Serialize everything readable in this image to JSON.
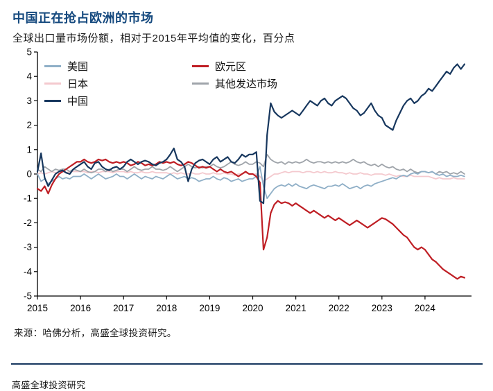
{
  "header": {
    "title": "中国正在抢占欧洲的市场",
    "subtitle": "全球出口量市场份额，相对于2015年平均值的变化，百分点"
  },
  "source": "来源：哈佛分析，高盛全球投资研究。",
  "footer": "高盛全球投资研究",
  "colors": {
    "title_blue": "#164a7f",
    "divider_navy": "#17375e"
  },
  "chart_data": {
    "type": "line",
    "title": "中国正在抢占欧洲的市场",
    "subtitle": "全球出口量市场份额，相对于2015年平均值的变化，百分点",
    "xlabel": "",
    "ylabel": "",
    "grid": false,
    "legend_position": "top-left-inside",
    "xlim": [
      2015,
      2025.08
    ],
    "ylim": [
      -5,
      5
    ],
    "x_ticks": [
      2015,
      2016,
      2017,
      2018,
      2019,
      2020,
      2021,
      2022,
      2023,
      2024
    ],
    "y_ticks": [
      -5,
      -4,
      -3,
      -2,
      -1,
      0,
      1,
      2,
      3,
      4,
      5
    ],
    "x_start": 2015,
    "x_step": 0.0833333,
    "draw_order": [
      "日本",
      "其他发达市场",
      "美国",
      "欧元区",
      "中国"
    ],
    "legend_columns": [
      [
        "美国",
        "日本",
        "中国"
      ],
      [
        "欧元区",
        "其他发达市场"
      ]
    ],
    "series": [
      {
        "name": "美国",
        "color": "#8fafc7",
        "width": 1.8,
        "values": [
          0.0,
          -0.3,
          -0.2,
          -0.4,
          -0.3,
          -0.2,
          -0.1,
          -0.2,
          -0.15,
          -0.2,
          -0.1,
          -0.1,
          -0.1,
          0.0,
          -0.1,
          -0.2,
          -0.1,
          0.0,
          -0.1,
          -0.2,
          -0.15,
          -0.1,
          0.0,
          -0.1,
          -0.1,
          -0.2,
          -0.1,
          0.0,
          -0.1,
          -0.2,
          -0.1,
          -0.15,
          -0.2,
          -0.1,
          -0.15,
          -0.2,
          -0.1,
          0.0,
          -0.1,
          -0.2,
          -0.15,
          -0.1,
          -0.2,
          -0.15,
          -0.2,
          -0.3,
          -0.25,
          -0.2,
          -0.2,
          -0.1,
          -0.2,
          -0.25,
          -0.15,
          -0.2,
          -0.3,
          -0.25,
          -0.2,
          -0.3,
          -0.25,
          -0.2,
          -0.2,
          -0.1,
          0.3,
          -0.5,
          -1.0,
          -0.8,
          -0.6,
          -0.5,
          -0.45,
          -0.5,
          -0.4,
          -0.5,
          -0.4,
          -0.5,
          -0.55,
          -0.6,
          -0.5,
          -0.45,
          -0.5,
          -0.55,
          -0.6,
          -0.5,
          -0.5,
          -0.45,
          -0.5,
          -0.4,
          -0.5,
          -0.6,
          -0.55,
          -0.5,
          -0.6,
          -0.5,
          -0.45,
          -0.5,
          -0.4,
          -0.35,
          -0.3,
          -0.25,
          -0.2,
          -0.15,
          -0.2,
          -0.1,
          -0.05,
          -0.1,
          0.0,
          0.05,
          0.0,
          0.1,
          0.1,
          0.05,
          0.1,
          0.0,
          -0.05,
          0.0,
          -0.1,
          -0.05,
          -0.1,
          -0.1,
          -0.05,
          -0.1
        ]
      },
      {
        "name": "日本",
        "color": "#f4c9ce",
        "width": 1.8,
        "values": [
          0.0,
          0.05,
          0.0,
          0.05,
          0.1,
          0.05,
          0.1,
          0.1,
          0.05,
          0.1,
          0.1,
          0.1,
          0.1,
          0.1,
          0.05,
          0.1,
          0.1,
          0.05,
          0.1,
          0.1,
          0.1,
          0.05,
          0.1,
          0.1,
          0.1,
          0.05,
          0.1,
          0.05,
          0.05,
          0.1,
          0.05,
          0.05,
          0.1,
          0.05,
          0.05,
          0.05,
          0.05,
          0.0,
          0.05,
          0.0,
          0.05,
          0.0,
          0.0,
          0.05,
          0.0,
          0.0,
          0.05,
          0.0,
          0.0,
          0.05,
          0.0,
          0.0,
          0.05,
          0.0,
          0.0,
          -0.05,
          0.0,
          0.0,
          0.05,
          0.0,
          0.0,
          0.0,
          -0.1,
          -0.3,
          -0.2,
          -0.1,
          0.0,
          0.0,
          0.05,
          0.1,
          0.05,
          0.1,
          0.1,
          0.1,
          0.05,
          0.1,
          0.1,
          0.05,
          0.1,
          0.05,
          0.1,
          0.05,
          0.05,
          0.1,
          0.05,
          0.05,
          0.0,
          0.05,
          0.0,
          0.0,
          0.05,
          0.0,
          0.0,
          -0.05,
          0.0,
          0.0,
          0.0,
          -0.05,
          0.0,
          -0.05,
          -0.1,
          -0.05,
          -0.1,
          -0.1,
          -0.05,
          -0.1,
          -0.1,
          -0.1,
          -0.1,
          -0.1,
          -0.15,
          -0.2,
          -0.15,
          -0.2,
          -0.2,
          -0.2,
          -0.15,
          -0.2,
          -0.2,
          -0.2
        ]
      },
      {
        "name": "中国",
        "color": "#17375e",
        "width": 2.2,
        "values": [
          0.1,
          0.85,
          -0.15,
          -0.5,
          -0.25,
          0.0,
          0.1,
          0.15,
          0.05,
          0.0,
          0.2,
          0.3,
          0.4,
          0.5,
          0.3,
          0.2,
          0.45,
          0.5,
          0.3,
          0.2,
          0.15,
          0.25,
          0.3,
          0.2,
          0.3,
          0.5,
          0.6,
          0.5,
          0.4,
          0.5,
          0.55,
          0.5,
          0.4,
          0.35,
          0.45,
          0.5,
          0.6,
          0.8,
          1.05,
          0.6,
          0.5,
          0.3,
          -0.3,
          0.2,
          0.45,
          0.55,
          0.6,
          0.5,
          0.4,
          0.6,
          0.7,
          0.5,
          0.6,
          0.7,
          0.5,
          0.45,
          0.6,
          0.8,
          0.7,
          0.8,
          0.8,
          0.9,
          -1.1,
          -1.2,
          1.6,
          2.9,
          2.55,
          2.4,
          2.3,
          2.4,
          2.5,
          2.6,
          2.5,
          2.4,
          2.6,
          2.8,
          3.0,
          2.9,
          2.8,
          3.0,
          3.1,
          2.9,
          2.8,
          3.0,
          3.1,
          3.2,
          3.1,
          2.9,
          2.7,
          2.6,
          2.4,
          2.5,
          2.7,
          2.9,
          2.6,
          2.4,
          2.3,
          2.0,
          1.9,
          1.8,
          2.2,
          2.5,
          2.8,
          3.0,
          3.1,
          2.9,
          3.0,
          3.2,
          3.3,
          3.5,
          3.4,
          3.6,
          3.8,
          4.0,
          4.2,
          4.1,
          4.35,
          4.5,
          4.3,
          4.5
        ]
      },
      {
        "name": "欧元区",
        "color": "#bf1e24",
        "width": 2.2,
        "values": [
          -0.6,
          -0.7,
          -0.5,
          -0.8,
          -0.45,
          -0.2,
          0.0,
          0.1,
          0.2,
          0.3,
          0.4,
          0.5,
          0.5,
          0.6,
          0.5,
          0.45,
          0.5,
          0.6,
          0.55,
          0.6,
          0.5,
          0.45,
          0.5,
          0.45,
          0.5,
          0.45,
          0.35,
          0.4,
          0.5,
          0.45,
          0.35,
          0.4,
          0.35,
          0.4,
          0.5,
          0.45,
          0.5,
          0.45,
          0.5,
          0.4,
          0.35,
          0.4,
          0.5,
          0.45,
          0.35,
          0.25,
          0.3,
          0.25,
          0.3,
          0.2,
          0.1,
          0.2,
          0.1,
          0.05,
          0.1,
          0.0,
          -0.1,
          0.0,
          0.1,
          0.0,
          0.0,
          -0.1,
          -0.35,
          -3.1,
          -2.6,
          -1.6,
          -1.25,
          -1.1,
          -1.2,
          -1.15,
          -1.2,
          -1.3,
          -1.2,
          -1.3,
          -1.4,
          -1.5,
          -1.6,
          -1.5,
          -1.6,
          -1.7,
          -1.8,
          -1.7,
          -1.8,
          -1.9,
          -1.8,
          -1.9,
          -2.0,
          -2.1,
          -2.0,
          -1.9,
          -2.0,
          -2.1,
          -2.2,
          -2.1,
          -2.0,
          -1.9,
          -1.8,
          -1.85,
          -1.95,
          -2.05,
          -2.2,
          -2.35,
          -2.5,
          -2.6,
          -2.8,
          -3.0,
          -3.1,
          -3.0,
          -3.1,
          -3.3,
          -3.5,
          -3.6,
          -3.75,
          -3.9,
          -4.0,
          -4.1,
          -4.2,
          -4.3,
          -4.2,
          -4.25
        ]
      },
      {
        "name": "其他发达市场",
        "color": "#9fa4aa",
        "width": 1.8,
        "values": [
          0.2,
          0.1,
          0.3,
          0.2,
          0.1,
          0.2,
          0.15,
          0.2,
          0.2,
          0.1,
          0.2,
          0.15,
          0.1,
          0.2,
          0.1,
          0.05,
          0.1,
          0.2,
          0.2,
          0.1,
          0.2,
          0.1,
          0.15,
          0.2,
          0.2,
          0.1,
          0.2,
          0.3,
          0.2,
          0.15,
          0.2,
          0.2,
          0.3,
          0.2,
          0.2,
          0.15,
          0.2,
          0.3,
          0.2,
          0.1,
          0.2,
          0.3,
          0.4,
          0.3,
          0.25,
          0.3,
          0.25,
          0.3,
          0.3,
          0.4,
          0.3,
          0.25,
          0.3,
          0.4,
          0.5,
          0.4,
          0.35,
          0.4,
          0.5,
          0.4,
          0.4,
          0.5,
          0.45,
          0.3,
          0.8,
          0.6,
          0.5,
          0.45,
          0.5,
          0.4,
          0.5,
          0.45,
          0.5,
          0.45,
          0.5,
          0.6,
          0.5,
          0.45,
          0.5,
          0.5,
          0.45,
          0.5,
          0.45,
          0.5,
          0.45,
          0.5,
          0.45,
          0.5,
          0.6,
          0.5,
          0.45,
          0.5,
          0.4,
          0.35,
          0.4,
          0.3,
          0.4,
          0.3,
          0.25,
          0.3,
          0.2,
          0.15,
          0.2,
          0.1,
          0.2,
          0.1,
          0.05,
          0.1,
          0.1,
          0.05,
          0.1,
          0.0,
          0.1,
          0.05,
          0.1,
          0.0,
          0.05,
          0.0,
          0.1,
          0.0
        ]
      }
    ]
  }
}
